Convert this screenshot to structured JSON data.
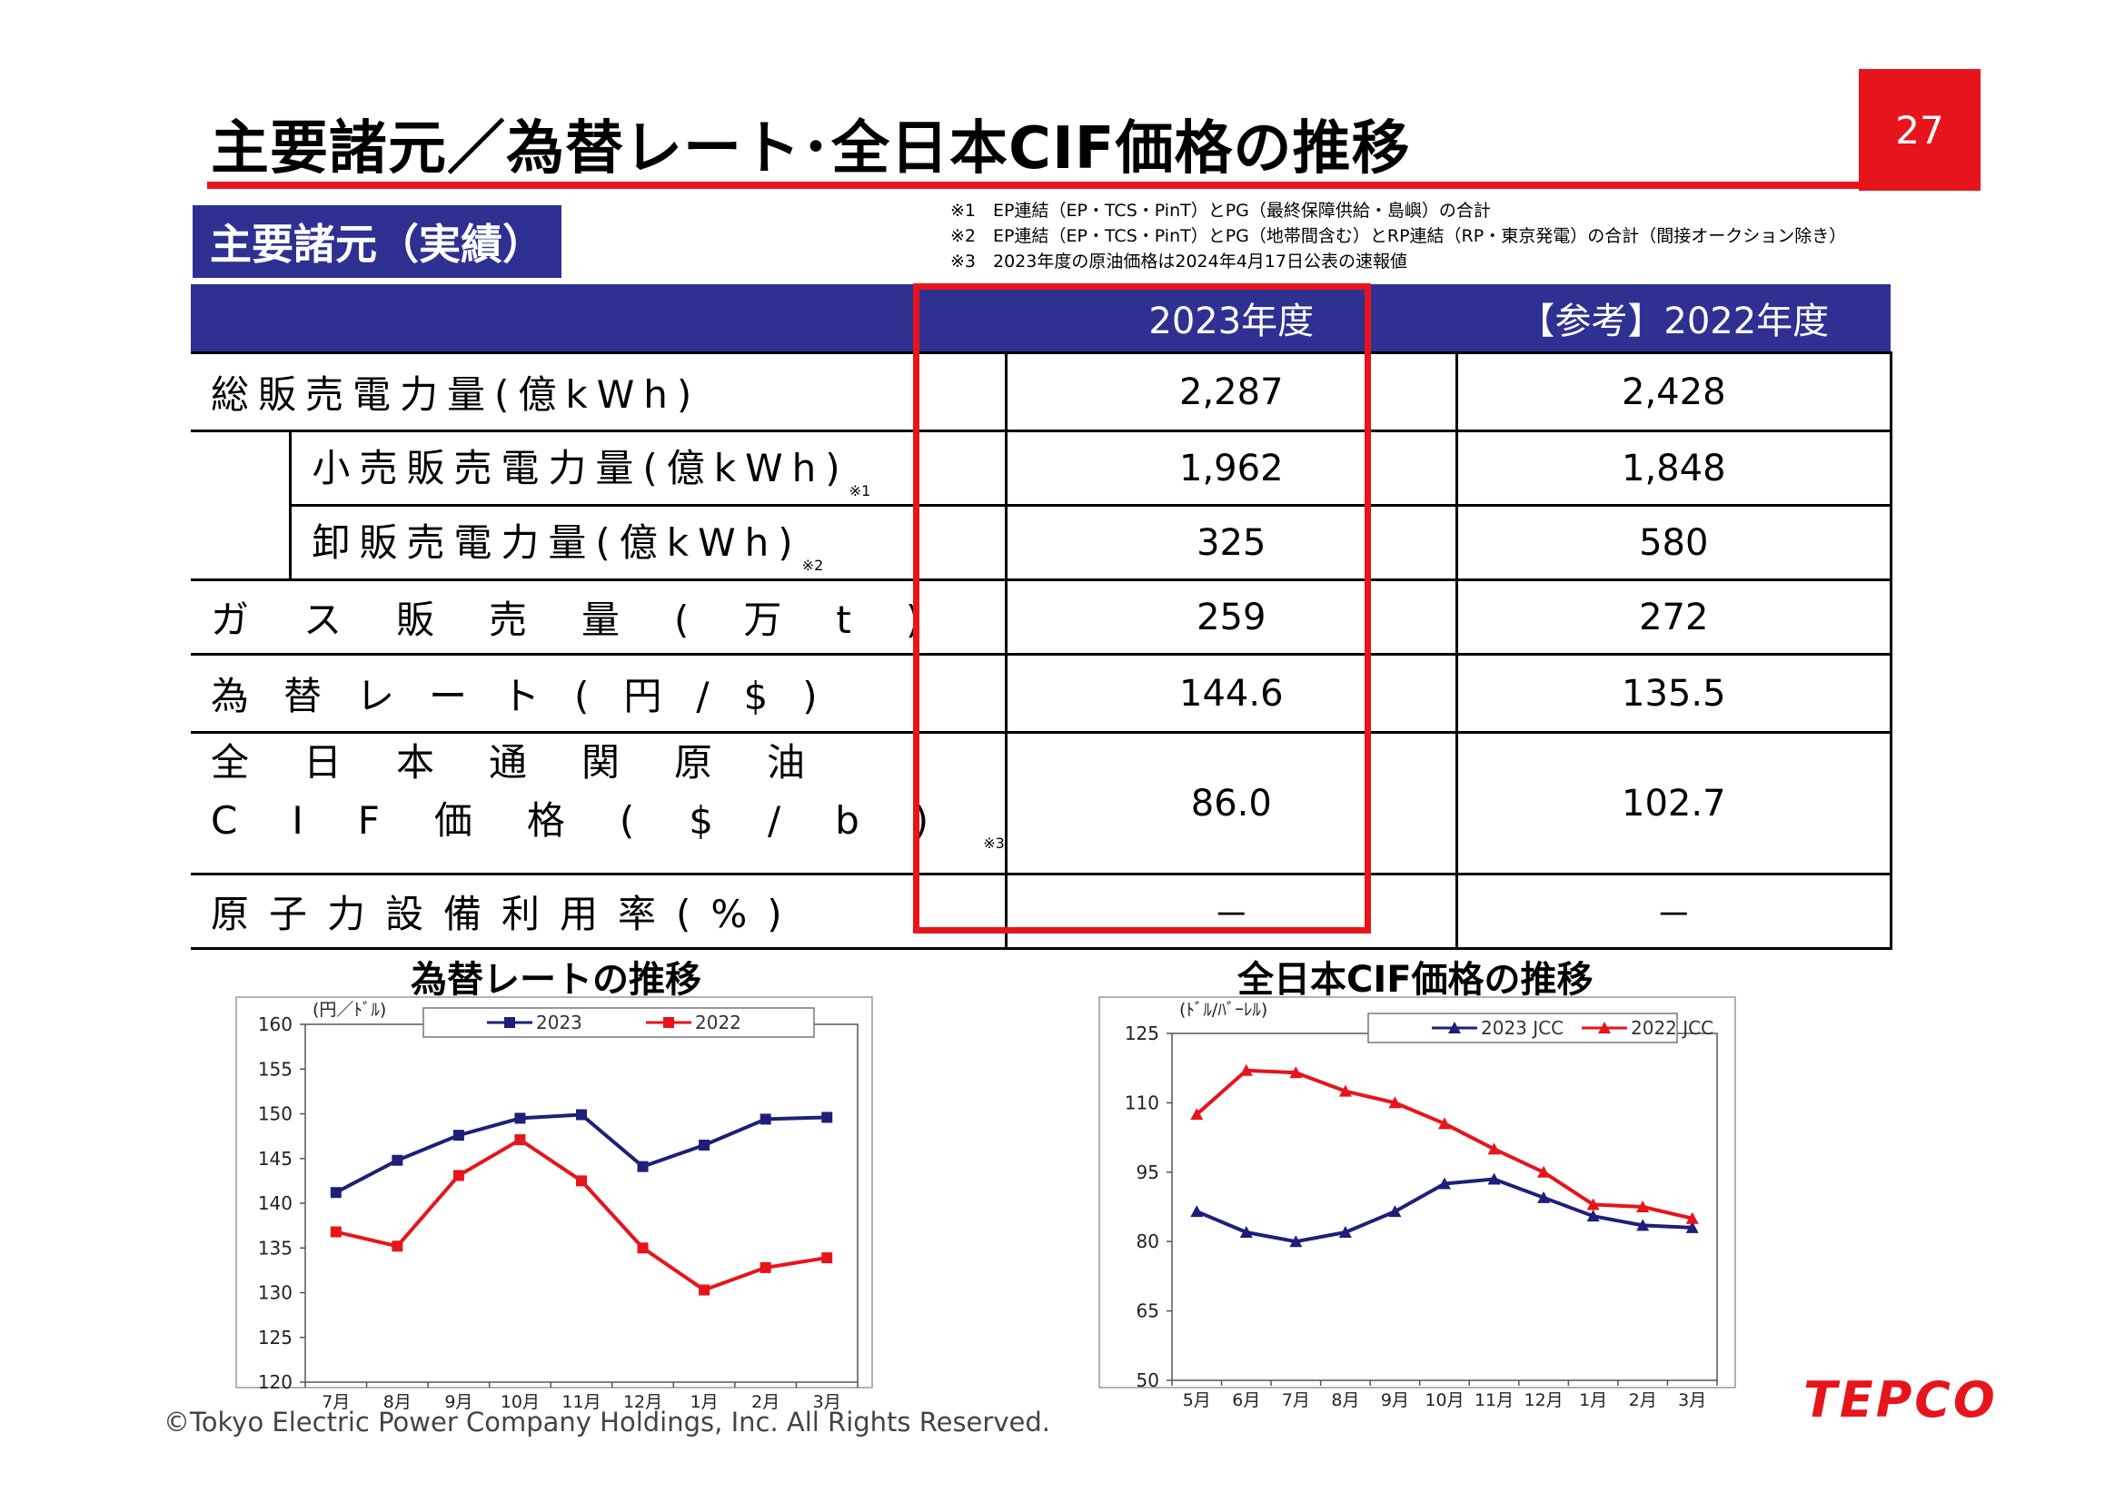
{
  "page": {
    "title": "主要諸元／為替レート･全日本CIF価格の推移",
    "number": "27",
    "section_label": "主要諸元（実績）",
    "notes": [
      "※1　EP連結（EP・TCS・PinT）とPG（最終保障供給・島嶼）の合計",
      "※2　EP連結（EP・TCS・PinT）とPG（地帯間含む）とRP連結（RP・東京発電）の合計（間接オークション除き）",
      "※3　2023年度の原油価格は2024年4月17日公表の速報値"
    ],
    "copyright": "©Tokyo Electric Power Company Holdings, Inc. All Rights Reserved.",
    "logo": "TEPCO"
  },
  "table": {
    "headers": [
      "2023年度",
      "【参考】2022年度"
    ],
    "rows": [
      {
        "label": "総販売電力量(億kWh)",
        "note": "",
        "v2023": "2,287",
        "v2022": "2,428"
      },
      {
        "label": "小売販売電力量(億kWh)",
        "note": "※1",
        "v2023": "1,962",
        "v2022": "1,848"
      },
      {
        "label": "卸販売電力量(億kWh)",
        "note": "※2",
        "v2023": "325",
        "v2022": "580"
      },
      {
        "label": "ガス販売量(万t)",
        "note": "",
        "v2023": "259",
        "v2022": "272"
      },
      {
        "label": "為替レート(円/$)",
        "note": "",
        "v2023": "144.6",
        "v2022": "135.5"
      },
      {
        "label": "全日本通関原油",
        "label2": "CIF価格($/b)",
        "note": "※3",
        "v2023": "86.0",
        "v2022": "102.7"
      },
      {
        "label": "原子力設備利用率(%)",
        "note": "",
        "v2023": "－",
        "v2022": "－"
      }
    ]
  },
  "chart_data": [
    {
      "type": "line",
      "title": "為替レートの推移",
      "unit": "(円／ﾄﾞﾙ)",
      "categories": [
        "7月",
        "8月",
        "9月",
        "10月",
        "11月",
        "12月",
        "1月",
        "2月",
        "3月"
      ],
      "ylim": [
        120,
        160
      ],
      "yticks": [
        120,
        125,
        130,
        135,
        140,
        145,
        150,
        155,
        160
      ],
      "legend": "top",
      "series": [
        {
          "name": "2023",
          "color": "#1f1f7a",
          "marker": "square",
          "values": [
            141.2,
            144.8,
            147.6,
            149.5,
            149.9,
            144.1,
            146.5,
            149.4,
            149.6
          ]
        },
        {
          "name": "2022",
          "color": "#e8141b",
          "marker": "square",
          "values": [
            136.8,
            135.2,
            143.1,
            147.1,
            142.5,
            135.0,
            130.3,
            132.8,
            133.9
          ]
        }
      ]
    },
    {
      "type": "line",
      "title": "全日本CIF価格の推移",
      "unit": "(ﾄﾞﾙ/ﾊﾞｰﾚﾙ)",
      "categories": [
        "5月",
        "6月",
        "7月",
        "8月",
        "9月",
        "10月",
        "11月",
        "12月",
        "1月",
        "2月",
        "3月"
      ],
      "ylim": [
        50,
        125
      ],
      "yticks": [
        50,
        65,
        80,
        95,
        110,
        125
      ],
      "legend": "top",
      "series": [
        {
          "name": "2023 JCC",
          "color": "#1f1f7a",
          "marker": "triangle",
          "values": [
            86.5,
            82.0,
            80.0,
            82.0,
            86.5,
            92.5,
            93.5,
            89.5,
            85.5,
            83.5,
            83.0
          ]
        },
        {
          "name": "2022 JCC",
          "color": "#e8141b",
          "marker": "triangle",
          "values": [
            107.5,
            117.0,
            116.5,
            112.5,
            110.0,
            105.5,
            100.0,
            95.0,
            88.0,
            87.5,
            85.0
          ]
        }
      ]
    }
  ]
}
